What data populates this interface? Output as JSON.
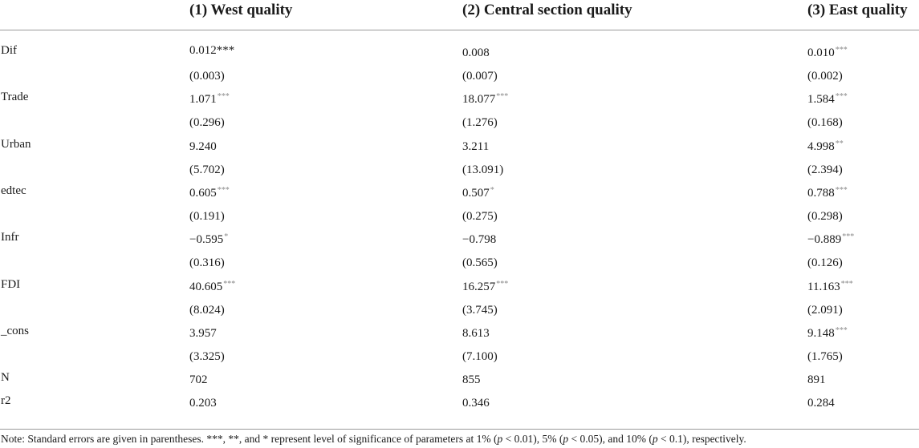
{
  "headers": [
    "",
    "(1) West quality",
    "(2) Central section quality",
    "(3) East quality"
  ],
  "rows": [
    {
      "label": "Dif",
      "v1": "0.012",
      "s1": "***",
      "v2": "0.008",
      "s2": "",
      "v3": "0.010",
      "s3": "***"
    },
    {
      "label": "",
      "v1": "(0.003)",
      "s1": "",
      "v2": "(0.007)",
      "s2": "",
      "v3": "(0.002)",
      "s3": ""
    },
    {
      "label": "Trade",
      "v1": "1.071",
      "s1": "***",
      "v2": "18.077",
      "s2": "***",
      "v3": "1.584",
      "s3": "***"
    },
    {
      "label": "",
      "v1": "(0.296)",
      "s1": "",
      "v2": "(1.276)",
      "s2": "",
      "v3": "(0.168)",
      "s3": ""
    },
    {
      "label": "Urban",
      "v1": "9.240",
      "s1": "",
      "v2": "3.211",
      "s2": "",
      "v3": "4.998",
      "s3": "**"
    },
    {
      "label": "",
      "v1": "(5.702)",
      "s1": "",
      "v2": "(13.091)",
      "s2": "",
      "v3": "(2.394)",
      "s3": ""
    },
    {
      "label": "edtec",
      "v1": "0.605",
      "s1": "***",
      "v2": "0.507",
      "s2": "*",
      "v3": "0.788",
      "s3": "***"
    },
    {
      "label": "",
      "v1": "(0.191)",
      "s1": "",
      "v2": "(0.275)",
      "s2": "",
      "v3": "(0.298)",
      "s3": ""
    },
    {
      "label": "Infr",
      "v1": "−0.595",
      "s1": "*",
      "v2": "−0.798",
      "s2": "",
      "v3": "−0.889",
      "s3": "***"
    },
    {
      "label": "",
      "v1": "(0.316)",
      "s1": "",
      "v2": "(0.565)",
      "s2": "",
      "v3": "(0.126)",
      "s3": ""
    },
    {
      "label": "FDI",
      "v1": "40.605",
      "s1": "***",
      "v2": "16.257",
      "s2": "***",
      "v3": "11.163",
      "s3": "***"
    },
    {
      "label": "",
      "v1": "(8.024)",
      "s1": "",
      "v2": "(3.745)",
      "s2": "",
      "v3": "(2.091)",
      "s3": ""
    },
    {
      "label": "_cons",
      "v1": "3.957",
      "s1": "",
      "v2": "8.613",
      "s2": "",
      "v3": "9.148",
      "s3": "***"
    },
    {
      "label": "",
      "v1": "(3.325)",
      "s1": "",
      "v2": "(7.100)",
      "s2": "",
      "v3": "(1.765)",
      "s3": ""
    },
    {
      "label": "N",
      "v1": "702",
      "s1": "",
      "v2": "855",
      "s2": "",
      "v3": "891",
      "s3": ""
    },
    {
      "label": "r2",
      "v1": "0.203",
      "s1": "",
      "v2": "0.346",
      "s2": "",
      "v3": "0.284",
      "s3": ""
    }
  ],
  "note": {
    "prefix": "Note: Standard errors are given in parentheses. ***, **, and * represent level of significance of parameters at 1% (",
    "p1_var": "p",
    "p1_rest": " < 0.01), 5% (",
    "p2_var": "p",
    "p2_rest": " < 0.05), and 10% (",
    "p3_var": "p",
    "p3_rest": " < 0.1), respectively."
  }
}
